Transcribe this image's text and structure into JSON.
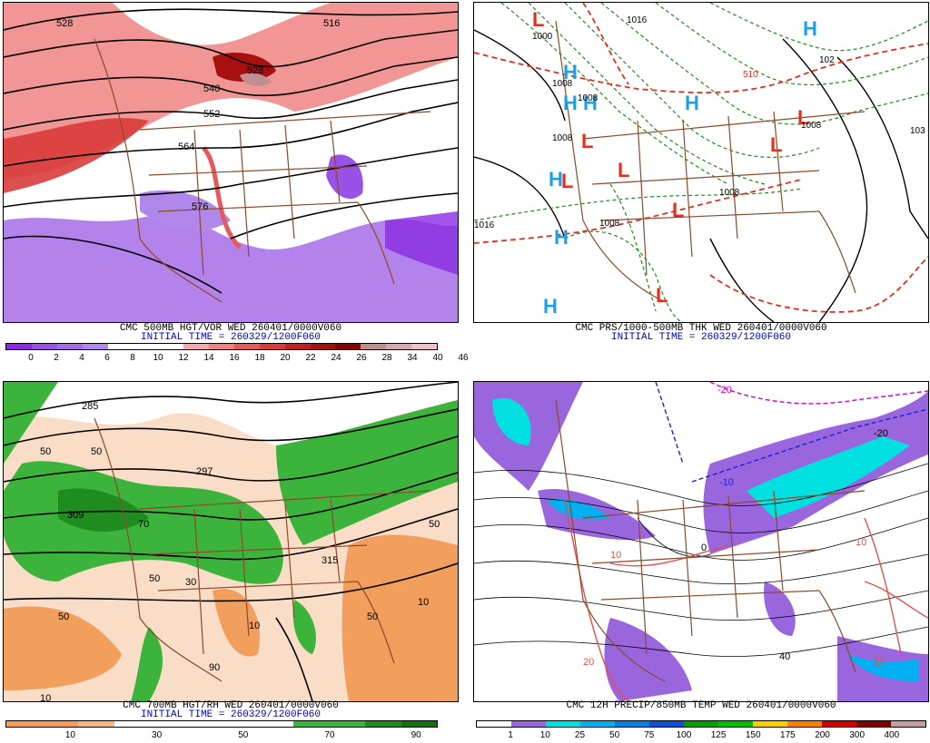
{
  "panels": [
    {
      "id": "p1",
      "caption": "CMC 500MB HGT/VOR WED 260401/0000V060",
      "initial": "INITIAL TIME = 260329/1200F060",
      "colors": [
        "#8a2be2",
        "#9a52e6",
        "#a66ce8",
        "#b088ec",
        "#ffffff",
        "#ffffff",
        "#ffffff",
        "#f7a8a8",
        "#f08282",
        "#e55a5a",
        "#d93b3b",
        "#c41e1e",
        "#a80f0f",
        "#8a0000",
        "#c09090",
        "#d8a8b0",
        "#f0c0c8"
      ],
      "ticks": [
        "0",
        "2",
        "4",
        "6",
        "8",
        "10",
        "12",
        "14",
        "16",
        "18",
        "20",
        "22",
        "24",
        "26",
        "28",
        "34",
        "40",
        "46"
      ],
      "contour_labels": [
        "528",
        "516",
        "528",
        "540",
        "552",
        "564",
        "576"
      ]
    },
    {
      "id": "p2",
      "caption": "CMC PRS/1000-500MB THK WED 260401/0000V060",
      "initial": "INITIAL TIME = 260329/1200F060",
      "centers": [
        {
          "t": "L",
          "c": "#e03020"
        },
        {
          "t": "L",
          "c": "#e03020"
        },
        {
          "t": "L",
          "c": "#e03020"
        },
        {
          "t": "L",
          "c": "#e03020"
        },
        {
          "t": "L",
          "c": "#e03020"
        },
        {
          "t": "L",
          "c": "#e03020"
        },
        {
          "t": "L",
          "c": "#e03020"
        },
        {
          "t": "L",
          "c": "#e03020"
        },
        {
          "t": "H",
          "c": "#20a0e0"
        },
        {
          "t": "H",
          "c": "#20a0e0"
        },
        {
          "t": "H",
          "c": "#20a0e0"
        },
        {
          "t": "H",
          "c": "#20a0e0"
        },
        {
          "t": "H",
          "c": "#20a0e0"
        },
        {
          "t": "H",
          "c": "#20a0e0"
        },
        {
          "t": "H",
          "c": "#20a0e0"
        },
        {
          "t": "H",
          "c": "#20a0e0"
        }
      ],
      "contour_labels": [
        "1000",
        "1016",
        "102",
        "1008",
        "1008",
        "1008",
        "1008",
        "510",
        "1016",
        "1008",
        "103",
        "1008"
      ]
    },
    {
      "id": "p3",
      "caption": "CMC 700MB HGT/RH WED 260401/0000V060",
      "initial": "INITIAL TIME = 260329/1200F060",
      "colors": [
        "#f29e5c",
        "#f29e5c",
        "#f6b888",
        "#ffffff",
        "#ffffff",
        "#ffffff",
        "#ffffff",
        "#ffffff",
        "#3cb43c",
        "#3cb43c",
        "#1e8c1e",
        "#137013"
      ],
      "ticks": [
        "10",
        "30",
        "50",
        "70",
        "90"
      ],
      "contour_labels": [
        "285",
        "297",
        "309",
        "315",
        "10",
        "50",
        "50",
        "30",
        "50",
        "10",
        "70",
        "50",
        "90",
        "50",
        "10",
        "50"
      ]
    },
    {
      "id": "p4",
      "caption": "CMC 12H PRECIP/850MB TEMP WED 260401/0000V060",
      "colors": [
        "#ffffff",
        "#9a66dd",
        "#00e0e0",
        "#00b0f0",
        "#0080e0",
        "#1050d0",
        "#00a000",
        "#00c000",
        "#ffd000",
        "#ff8000",
        "#d00000",
        "#800000",
        "#c0a0a0"
      ],
      "ticks": [
        "1",
        "10",
        "25",
        "50",
        "75",
        "100",
        "125",
        "150",
        "175",
        "200",
        "300",
        "400"
      ],
      "contour_labels": [
        "-20",
        "-10",
        "0",
        "10",
        "20",
        "20",
        "40",
        "10",
        "-20"
      ]
    }
  ]
}
